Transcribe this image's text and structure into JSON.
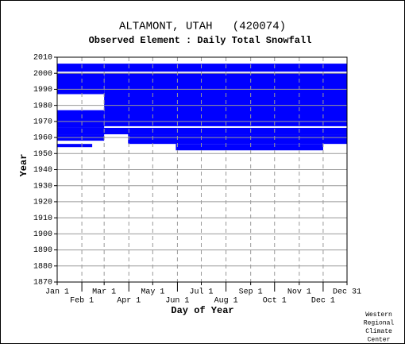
{
  "chart_data": {
    "type": "availability",
    "title": "ALTAMONT, UTAH   (420074)",
    "subtitle": "Observed Element : Daily Total Snowfall",
    "y_label": "Year",
    "x_label": "Day of Year",
    "credit": [
      "Western",
      "Regional",
      "Climate",
      "Center"
    ],
    "color": "#0000ff",
    "grid": true,
    "xlim": [
      1,
      365
    ],
    "xticks": [
      {
        "value": 1,
        "label": "Jan 1"
      },
      {
        "value": 32,
        "label": "Feb 1"
      },
      {
        "value": 60,
        "label": "Mar 1"
      },
      {
        "value": 91,
        "label": "Apr 1"
      },
      {
        "value": 121,
        "label": "May 1"
      },
      {
        "value": 152,
        "label": "Jun 1"
      },
      {
        "value": 182,
        "label": "Jul 1"
      },
      {
        "value": 213,
        "label": "Aug 1"
      },
      {
        "value": 244,
        "label": "Sep 1"
      },
      {
        "value": 274,
        "label": "Oct 1"
      },
      {
        "value": 305,
        "label": "Nov 1"
      },
      {
        "value": 335,
        "label": "Dec 1"
      },
      {
        "value": 365,
        "label": "Dec 31"
      }
    ],
    "ylim": [
      1870,
      2010
    ],
    "yticks": [
      1870,
      1880,
      1890,
      1900,
      1910,
      1920,
      1930,
      1940,
      1950,
      1960,
      1970,
      1980,
      1990,
      2000,
      2010
    ],
    "blocks": {
      "year_start": [
        2001,
        1967,
        1987,
        1966,
        1962,
        1956,
        1952,
        1958,
        1954
      ],
      "year_end": [
        2006,
        2000,
        2000,
        1977,
        1966,
        1962,
        1956,
        1962,
        1956
      ],
      "day_start": [
        1,
        60,
        1,
        1,
        1,
        90,
        150,
        1,
        1
      ],
      "day_end": [
        365,
        365,
        60,
        60,
        365,
        365,
        335,
        60,
        45
      ]
    }
  }
}
